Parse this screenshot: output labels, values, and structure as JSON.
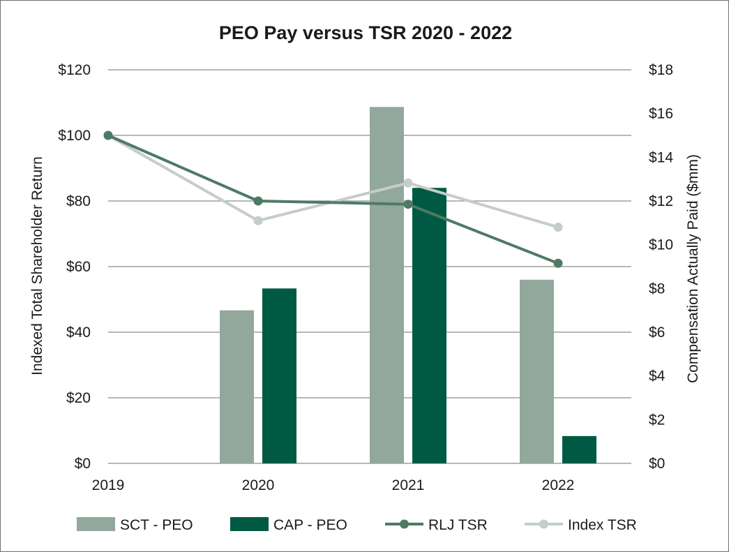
{
  "chart_data": {
    "type": "bar+line",
    "title": "PEO Pay versus TSR 2020 - 2022",
    "categories": [
      "2019",
      "2020",
      "2021",
      "2022"
    ],
    "left_axis": {
      "label": "Indexed Total Shareholder Return",
      "range": [
        0,
        120
      ],
      "ticks": [
        0,
        20,
        40,
        60,
        80,
        100,
        120
      ],
      "tick_labels": [
        "$0",
        "$20",
        "$40",
        "$60",
        "$80",
        "$100",
        "$120"
      ]
    },
    "right_axis": {
      "label": "Compensation Actually Paid ($mm)",
      "range": [
        0,
        18
      ],
      "ticks": [
        0,
        2,
        4,
        6,
        8,
        10,
        12,
        14,
        16,
        18
      ],
      "tick_labels": [
        "$0",
        "$2",
        "$4",
        "$6",
        "$8",
        "$10",
        "$12",
        "$14",
        "$16",
        "$18"
      ]
    },
    "bar_series": [
      {
        "name": "SCT - PEO",
        "color": "#93a89d",
        "axis": "right",
        "values": [
          null,
          7.0,
          16.3,
          8.4
        ]
      },
      {
        "name": "CAP - PEO",
        "color": "#005a43",
        "axis": "right",
        "values": [
          null,
          8.0,
          12.6,
          1.25
        ]
      }
    ],
    "line_series": [
      {
        "name": "RLJ TSR",
        "color": "#4e7a65",
        "axis": "left",
        "values": [
          100,
          80,
          79,
          61
        ]
      },
      {
        "name": "Index TSR",
        "color": "#c5cdc8",
        "axis": "left",
        "values": [
          100,
          74,
          85.5,
          72
        ]
      }
    ],
    "legend_position": "bottom",
    "grid": true
  }
}
